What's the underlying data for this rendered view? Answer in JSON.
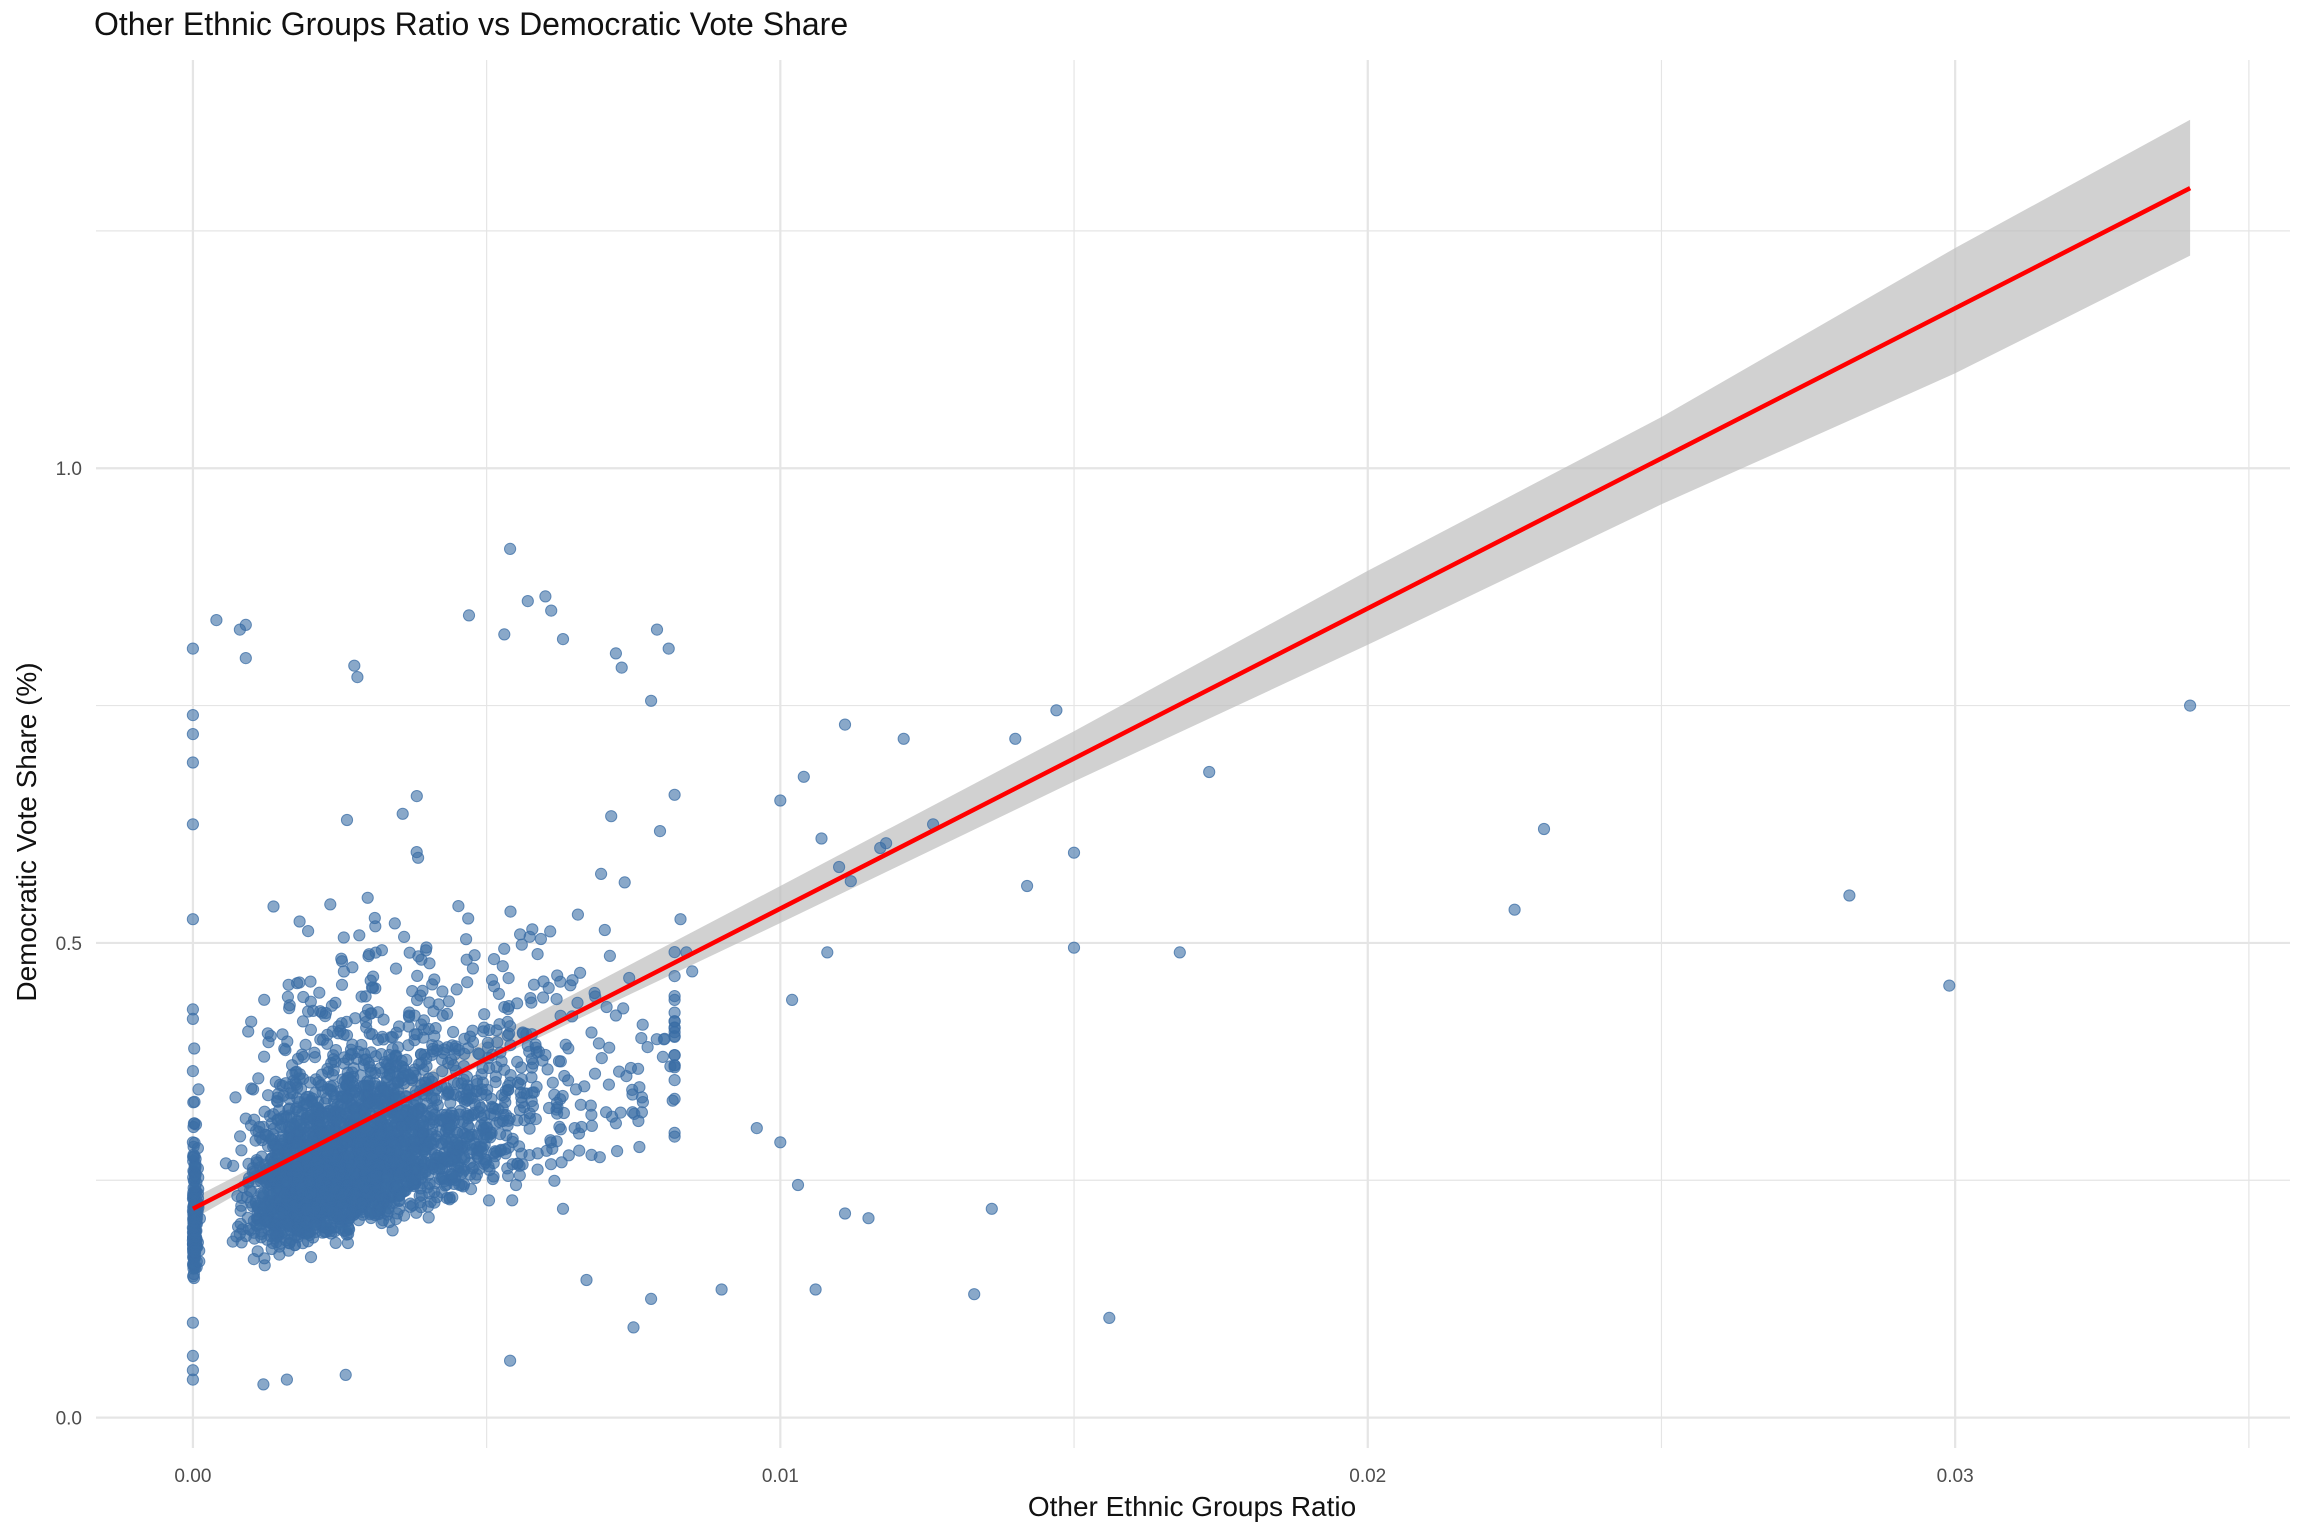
{
  "chart_data": {
    "type": "scatter",
    "title": "Other Ethnic Groups Ratio vs Democratic Vote Share",
    "xlabel": "Other Ethnic Groups Ratio",
    "ylabel": "Democratic Vote Share (%)",
    "xlim": [
      -0.00165,
      0.0357
    ],
    "ylim": [
      -0.032,
      1.43
    ],
    "x_ticks": [
      0.0,
      0.01,
      0.02,
      0.03
    ],
    "x_tick_labels": [
      "0.00",
      "0.01",
      "0.02",
      "0.03"
    ],
    "y_ticks": [
      0.0,
      0.5,
      1.0
    ],
    "y_tick_labels": [
      "0.0",
      "0.5",
      "1.0"
    ],
    "grid": true,
    "legend": "none",
    "colors": {
      "points": "#3b6ea5",
      "fit_line": "#ff0000",
      "ribbon": "#bebebe",
      "grid": "#e5e5e5"
    },
    "point_count": 3100,
    "points_sample": [
      [
        0.0,
        0.81
      ],
      [
        0.0004,
        0.84
      ],
      [
        0.0008,
        0.83
      ],
      [
        0.0009,
        0.835
      ],
      [
        0.0009,
        0.8
      ],
      [
        0.0028,
        0.78
      ],
      [
        0.0054,
        0.915
      ],
      [
        0.0057,
        0.86
      ],
      [
        0.006,
        0.865
      ],
      [
        0.0061,
        0.85
      ],
      [
        0.0047,
        0.845
      ],
      [
        0.0079,
        0.83
      ],
      [
        0.0072,
        0.805
      ],
      [
        0.0081,
        0.81
      ],
      [
        0.0073,
        0.79
      ],
      [
        0.0053,
        0.825
      ],
      [
        0.0063,
        0.82
      ],
      [
        0.0,
        0.74
      ],
      [
        0.0,
        0.72
      ],
      [
        0.0,
        0.69
      ],
      [
        0.0,
        0.625
      ],
      [
        0.0,
        0.525
      ],
      [
        0.0,
        0.43
      ],
      [
        0.0,
        0.42
      ],
      [
        0.0,
        0.365
      ],
      [
        0.0,
        0.29
      ],
      [
        0.0,
        0.2
      ],
      [
        0.0,
        0.1
      ],
      [
        0.0,
        0.065
      ],
      [
        0.0,
        0.05
      ],
      [
        0.0,
        0.04
      ],
      [
        0.0012,
        0.035
      ],
      [
        0.0016,
        0.04
      ],
      [
        0.0026,
        0.045
      ],
      [
        0.0054,
        0.06
      ],
      [
        0.0075,
        0.095
      ],
      [
        0.0096,
        0.305
      ],
      [
        0.01,
        0.29
      ],
      [
        0.0103,
        0.245
      ],
      [
        0.0111,
        0.215
      ],
      [
        0.0115,
        0.21
      ],
      [
        0.009,
        0.135
      ],
      [
        0.0106,
        0.135
      ],
      [
        0.0133,
        0.13
      ],
      [
        0.0136,
        0.22
      ],
      [
        0.0156,
        0.105
      ],
      [
        0.01,
        0.65
      ],
      [
        0.0104,
        0.675
      ],
      [
        0.0107,
        0.61
      ],
      [
        0.011,
        0.58
      ],
      [
        0.0112,
        0.565
      ],
      [
        0.0117,
        0.6
      ],
      [
        0.0108,
        0.49
      ],
      [
        0.0102,
        0.44
      ],
      [
        0.0118,
        0.605
      ],
      [
        0.0121,
        0.715
      ],
      [
        0.0111,
        0.73
      ],
      [
        0.014,
        0.715
      ],
      [
        0.0147,
        0.745
      ],
      [
        0.0142,
        0.56
      ],
      [
        0.015,
        0.595
      ],
      [
        0.015,
        0.495
      ],
      [
        0.0168,
        0.49
      ],
      [
        0.0173,
        0.68
      ],
      [
        0.0126,
        0.625
      ],
      [
        0.0225,
        0.535
      ],
      [
        0.023,
        0.62
      ],
      [
        0.0282,
        0.55
      ],
      [
        0.0299,
        0.455
      ],
      [
        0.034,
        0.75
      ],
      [
        0.0078,
        0.755
      ],
      [
        0.0083,
        0.525
      ],
      [
        0.0084,
        0.49
      ],
      [
        0.0085,
        0.47
      ],
      [
        0.008,
        0.38
      ],
      [
        0.0082,
        0.3
      ],
      [
        0.0076,
        0.285
      ],
      [
        0.0072,
        0.31
      ],
      [
        0.0065,
        0.305
      ],
      [
        0.0063,
        0.22
      ],
      [
        0.0078,
        0.125
      ],
      [
        0.0067,
        0.145
      ]
    ],
    "fit_line": {
      "x": [
        0.0,
        0.034
      ],
      "y": [
        0.22,
        1.295
      ]
    },
    "confidence_band": {
      "x": [
        0.0,
        0.0025,
        0.005,
        0.01,
        0.015,
        0.02,
        0.025,
        0.03,
        0.034
      ],
      "lower": [
        0.209,
        0.297,
        0.374,
        0.521,
        0.67,
        0.814,
        0.962,
        1.1,
        1.224
      ],
      "upper": [
        0.231,
        0.311,
        0.398,
        0.56,
        0.723,
        0.892,
        1.054,
        1.232,
        1.367
      ]
    }
  }
}
